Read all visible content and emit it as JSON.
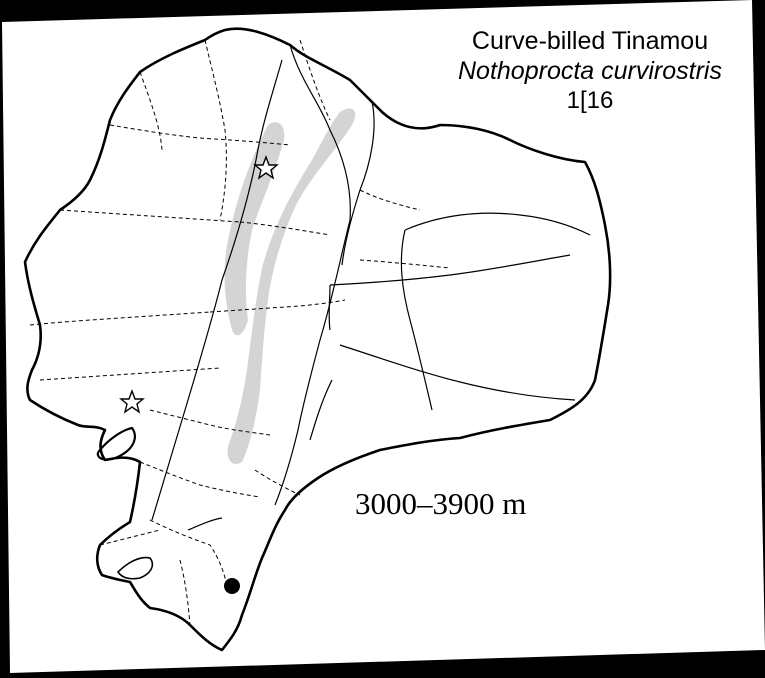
{
  "title": {
    "common_name": "Curve-billed Tinamou",
    "scientific_name": "Nothoprocta curvirostris",
    "map_id": "1[16"
  },
  "elevation_label": "3000–3900 m",
  "colors": {
    "background": "#000000",
    "paper": "#ffffff",
    "outline": "#000000",
    "range_fill": "#d4d4d4"
  },
  "legend_symbols": [
    "star-icon",
    "dot-icon"
  ]
}
